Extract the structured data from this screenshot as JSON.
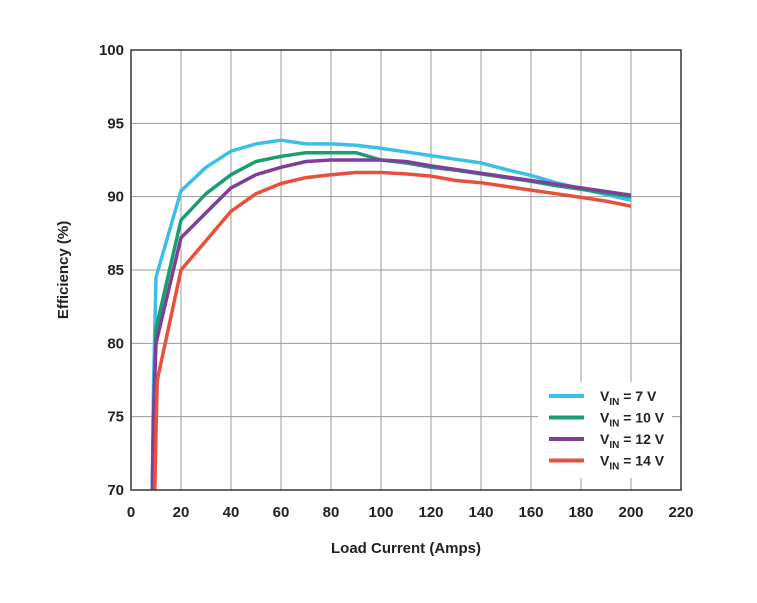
{
  "chart_data": {
    "type": "line",
    "xlabel": "Load Current (Amps)",
    "ylabel": "Efficiency (%)",
    "xlim": [
      0,
      220
    ],
    "ylim": [
      70,
      100
    ],
    "x_ticks": [
      0,
      20,
      40,
      60,
      80,
      100,
      120,
      140,
      160,
      180,
      200,
      220
    ],
    "y_ticks": [
      70,
      75,
      80,
      85,
      90,
      95,
      100
    ],
    "grid": true,
    "legend_position": "bottom-right",
    "series": [
      {
        "name_main": "V",
        "name_sub": "IN",
        "name_rest": " = 7 V",
        "color": "#3bbfe8",
        "points": [
          [
            8.5,
            70
          ],
          [
            9,
            77
          ],
          [
            10,
            84.5
          ],
          [
            20,
            90.4
          ],
          [
            30,
            92
          ],
          [
            40,
            93.1
          ],
          [
            50,
            93.6
          ],
          [
            60,
            93.85
          ],
          [
            70,
            93.6
          ],
          [
            80,
            93.6
          ],
          [
            90,
            93.5
          ],
          [
            100,
            93.3
          ],
          [
            110,
            93.05
          ],
          [
            120,
            92.8
          ],
          [
            130,
            92.55
          ],
          [
            140,
            92.3
          ],
          [
            150,
            91.85
          ],
          [
            160,
            91.45
          ],
          [
            170,
            90.95
          ],
          [
            180,
            90.55
          ],
          [
            190,
            90.15
          ],
          [
            200,
            89.75
          ]
        ]
      },
      {
        "name_main": "V",
        "name_sub": "IN",
        "name_rest": " = 10 V",
        "color": "#1a9e6e",
        "points": [
          [
            8.5,
            70
          ],
          [
            9,
            75
          ],
          [
            10,
            81
          ],
          [
            20,
            88.4
          ],
          [
            30,
            90.2
          ],
          [
            40,
            91.5
          ],
          [
            50,
            92.4
          ],
          [
            60,
            92.75
          ],
          [
            70,
            93
          ],
          [
            80,
            93
          ],
          [
            90,
            93
          ],
          [
            100,
            92.5
          ],
          [
            110,
            92.3
          ],
          [
            120,
            92
          ],
          [
            130,
            91.8
          ],
          [
            140,
            91.55
          ],
          [
            150,
            91.3
          ],
          [
            160,
            91.05
          ],
          [
            170,
            90.75
          ],
          [
            180,
            90.5
          ],
          [
            190,
            90.25
          ],
          [
            200,
            90
          ]
        ]
      },
      {
        "name_main": "V",
        "name_sub": "IN",
        "name_rest": " = 12 V",
        "color": "#7d3f98",
        "points": [
          [
            8.5,
            70
          ],
          [
            9,
            75
          ],
          [
            10,
            80
          ],
          [
            20,
            87.2
          ],
          [
            30,
            88.9
          ],
          [
            40,
            90.6
          ],
          [
            50,
            91.5
          ],
          [
            60,
            92
          ],
          [
            70,
            92.4
          ],
          [
            80,
            92.5
          ],
          [
            90,
            92.5
          ],
          [
            100,
            92.5
          ],
          [
            110,
            92.4
          ],
          [
            120,
            92.1
          ],
          [
            130,
            91.85
          ],
          [
            140,
            91.6
          ],
          [
            150,
            91.35
          ],
          [
            160,
            91.1
          ],
          [
            170,
            90.85
          ],
          [
            180,
            90.6
          ],
          [
            190,
            90.35
          ],
          [
            200,
            90.1
          ]
        ]
      },
      {
        "name_main": "V",
        "name_sub": "IN",
        "name_rest": " = 14 V",
        "color": "#e8503a",
        "points": [
          [
            9.5,
            70
          ],
          [
            10,
            74
          ],
          [
            10.5,
            77.5
          ],
          [
            20,
            85
          ],
          [
            30,
            87
          ],
          [
            40,
            89
          ],
          [
            50,
            90.2
          ],
          [
            60,
            90.9
          ],
          [
            70,
            91.3
          ],
          [
            80,
            91.5
          ],
          [
            90,
            91.65
          ],
          [
            100,
            91.65
          ],
          [
            110,
            91.55
          ],
          [
            120,
            91.4
          ],
          [
            130,
            91.1
          ],
          [
            140,
            90.95
          ],
          [
            150,
            90.7
          ],
          [
            160,
            90.45
          ],
          [
            170,
            90.2
          ],
          [
            180,
            89.95
          ],
          [
            190,
            89.7
          ],
          [
            200,
            89.35
          ]
        ]
      }
    ]
  }
}
